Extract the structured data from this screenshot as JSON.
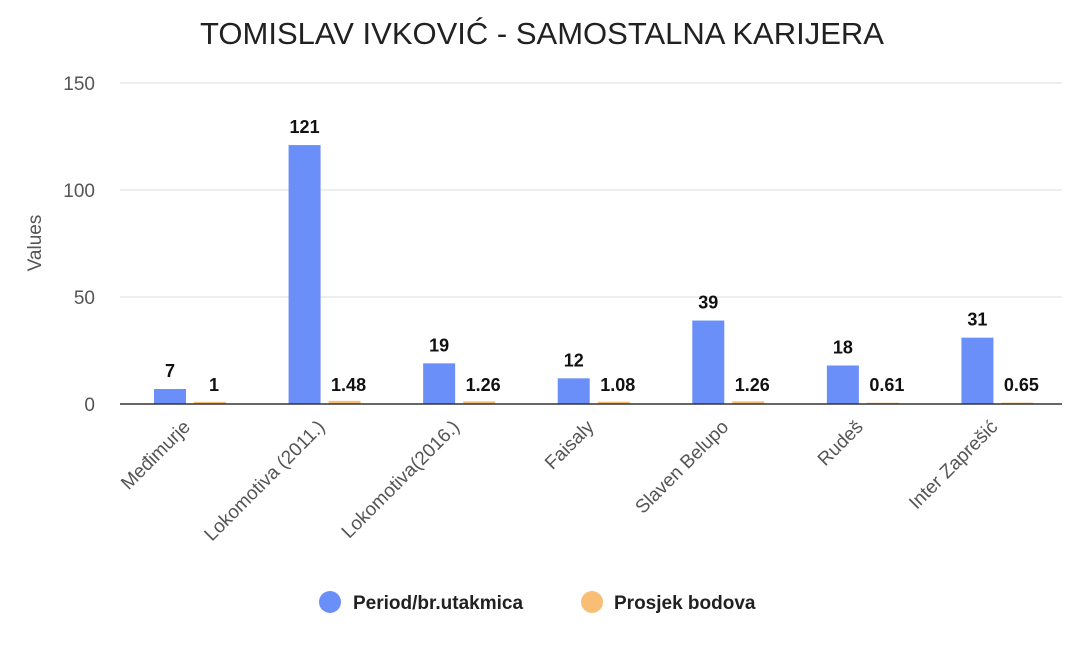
{
  "chart_data": {
    "type": "bar",
    "title": "TOMISLAV IVKOVIĆ - SAMOSTALNA KARIJERA",
    "xlabel": "",
    "ylabel": "Values",
    "ylim": [
      0,
      150
    ],
    "yticks": [
      "0",
      "50",
      "100",
      "150"
    ],
    "grid": true,
    "legend_position": "bottom",
    "categories": [
      "Međimurje",
      "Lokomotiva (2011.)",
      "Lokomotiva(2016.)",
      "Faisaly",
      "Slaven Belupo",
      "Rudeš",
      "Inter Zaprešić"
    ],
    "series": [
      {
        "name": "Period/br.utakmica",
        "color": "#6b8ff8",
        "values": [
          7,
          121,
          19,
          12,
          39,
          18,
          31
        ],
        "labels": [
          "7",
          "121",
          "19",
          "12",
          "39",
          "18",
          "31"
        ]
      },
      {
        "name": "Prosjek bodova",
        "color": "#f8be76",
        "values": [
          1,
          1.48,
          1.26,
          1.08,
          1.26,
          0.61,
          0.65
        ],
        "labels": [
          "1",
          "1.48",
          "1.26",
          "1.08",
          "1.26",
          "0.61",
          "0.65"
        ]
      }
    ]
  }
}
